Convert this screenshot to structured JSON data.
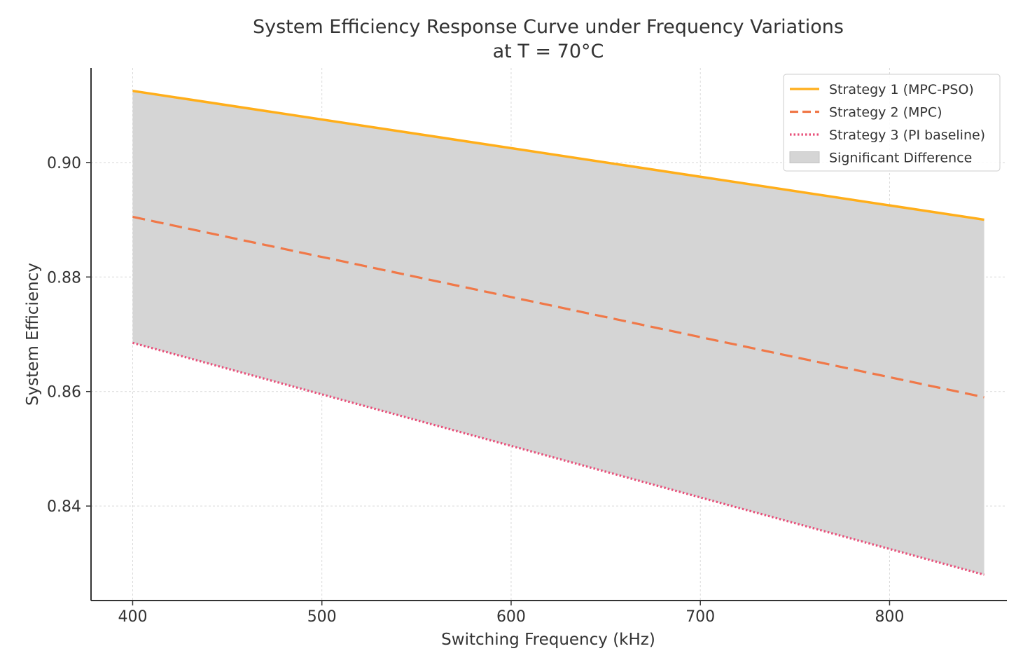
{
  "chart_data": {
    "type": "line",
    "title": [
      "System Efficiency Response Curve under Frequency Variations",
      "at T = 70°C"
    ],
    "xlabel": "Switching Frequency (kHz)",
    "ylabel": "System Efficiency",
    "x": [
      400,
      850
    ],
    "xlim": [
      378,
      862
    ],
    "ylim": [
      0.8235,
      0.9165
    ],
    "xticks": [
      400,
      500,
      600,
      700,
      800
    ],
    "xtick_labels": [
      "400",
      "500",
      "600",
      "700",
      "800"
    ],
    "yticks": [
      0.84,
      0.86,
      0.88,
      0.9
    ],
    "ytick_labels": [
      "0.84",
      "0.86",
      "0.88",
      "0.90"
    ],
    "grid": true,
    "legend_position": "top-right",
    "series": [
      {
        "name": "Strategy 1 (MPC-PSO)",
        "values": [
          0.9125,
          0.89
        ],
        "color": "#FFAE1A",
        "style": "solid"
      },
      {
        "name": "Strategy 2 (MPC)",
        "values": [
          0.8905,
          0.859
        ],
        "color": "#F07848",
        "style": "dashed"
      },
      {
        "name": "Strategy 3 (PI baseline)",
        "values": [
          0.8685,
          0.828
        ],
        "color": "#E8507A",
        "style": "dotted"
      }
    ],
    "fill": {
      "name": "Significant Difference",
      "between": [
        "Strategy 1 (MPC-PSO)",
        "Strategy 3 (PI baseline)"
      ],
      "color": "#D5D5D5"
    }
  }
}
